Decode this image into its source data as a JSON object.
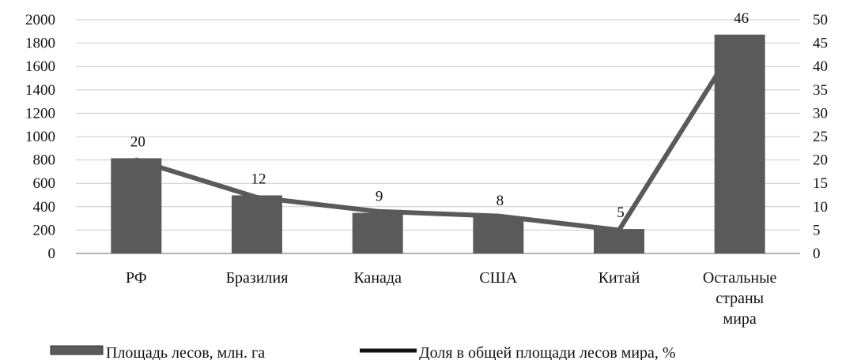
{
  "chart_data": {
    "type": "bar",
    "categories": [
      [
        "РФ"
      ],
      [
        "Бразилия"
      ],
      [
        "Канада"
      ],
      [
        "США"
      ],
      [
        "Китай"
      ],
      [
        "Остальные",
        "страны",
        "мира"
      ]
    ],
    "series": [
      {
        "name": "Площадь лесов, млн. га",
        "type": "bar",
        "axis": "left",
        "values": [
          815,
          497,
          347,
          310,
          209,
          1873
        ],
        "color": "#5a5a5a"
      },
      {
        "name": "Доля в общей площади лесов мира, %",
        "type": "line",
        "axis": "right",
        "values": [
          20,
          12,
          9,
          8,
          5,
          46
        ],
        "labels": [
          "20",
          "12",
          "9",
          "8",
          "5",
          "46"
        ],
        "color": "#5a5a5a"
      }
    ],
    "y_left": {
      "min": 0,
      "max": 2000,
      "step": 200
    },
    "y_right": {
      "min": 0,
      "max": 50,
      "step": 5
    },
    "grid": true,
    "legend_position": "bottom",
    "colors": {
      "gridline": "#c9c9c9",
      "axis": "#9a9a9a"
    }
  }
}
